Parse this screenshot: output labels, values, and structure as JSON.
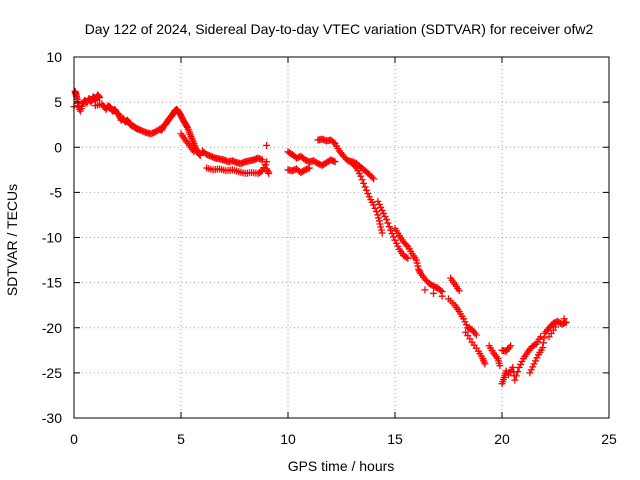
{
  "chart_data": {
    "type": "scatter",
    "title": "Day 122 of 2024, Sidereal Day-to-day VTEC variation (SDTVAR) for receiver ofw2",
    "xlabel": "GPS time / hours",
    "ylabel": "SDTVAR / TECUs",
    "xlim": [
      0,
      25
    ],
    "ylim": [
      -30,
      10
    ],
    "xticks": [
      0,
      5,
      10,
      15,
      20,
      25
    ],
    "yticks": [
      -30,
      -25,
      -20,
      -15,
      -10,
      -5,
      0,
      5,
      10
    ],
    "xtick_labels": [
      "0",
      "5",
      "10",
      "15",
      "20",
      "25"
    ],
    "ytick_labels": [
      "-30",
      "-25",
      "-20",
      "-15",
      "-10",
      "-5",
      "0",
      "5",
      "10"
    ],
    "grid": true,
    "marker": "+",
    "color": "#ff0000",
    "series": [
      {
        "name": "SDTVAR",
        "points": [
          [
            0.0,
            4.5
          ],
          [
            0.05,
            6.2
          ],
          [
            0.1,
            5.8
          ],
          [
            0.15,
            5.3
          ],
          [
            0.2,
            4.6
          ],
          [
            0.3,
            4.0
          ],
          [
            0.4,
            4.8
          ],
          [
            0.5,
            5.2
          ],
          [
            0.6,
            4.9
          ],
          [
            0.7,
            5.4
          ],
          [
            0.8,
            5.0
          ],
          [
            0.9,
            5.6
          ],
          [
            1.0,
            5.2
          ],
          [
            1.1,
            5.8
          ],
          [
            1.2,
            5.5
          ],
          [
            1.0,
            4.6
          ],
          [
            1.3,
            4.8
          ],
          [
            1.5,
            4.2
          ],
          [
            1.6,
            4.6
          ],
          [
            1.7,
            4.4
          ],
          [
            1.8,
            4.0
          ],
          [
            1.9,
            4.2
          ],
          [
            2.0,
            3.8
          ],
          [
            2.1,
            3.6
          ],
          [
            2.2,
            3.0
          ],
          [
            2.3,
            3.2
          ],
          [
            2.4,
            2.8
          ],
          [
            2.5,
            3.0
          ],
          [
            2.6,
            2.6
          ],
          [
            2.7,
            2.4
          ],
          [
            2.8,
            2.3
          ],
          [
            2.9,
            2.1
          ],
          [
            3.0,
            2.0
          ],
          [
            3.2,
            1.8
          ],
          [
            3.4,
            1.6
          ],
          [
            3.6,
            1.5
          ],
          [
            3.8,
            1.7
          ],
          [
            4.0,
            2.0
          ],
          [
            4.1,
            1.9
          ],
          [
            4.2,
            2.4
          ],
          [
            4.3,
            2.6
          ],
          [
            4.4,
            3.0
          ],
          [
            4.5,
            3.3
          ],
          [
            4.6,
            3.6
          ],
          [
            4.7,
            4.0
          ],
          [
            4.8,
            4.2
          ],
          [
            4.9,
            3.9
          ],
          [
            5.0,
            3.5
          ],
          [
            5.1,
            3.0
          ],
          [
            5.2,
            2.6
          ],
          [
            5.3,
            2.2
          ],
          [
            5.4,
            1.6
          ],
          [
            5.5,
            1.0
          ],
          [
            5.6,
            0.4
          ],
          [
            5.7,
            -0.2
          ],
          [
            5.8,
            -0.6
          ],
          [
            5.9,
            -0.9
          ],
          [
            5.0,
            1.5
          ],
          [
            5.2,
            0.8
          ],
          [
            5.4,
            0.2
          ],
          [
            5.6,
            -0.5
          ],
          [
            6.0,
            -0.4
          ],
          [
            6.2,
            -0.8
          ],
          [
            6.4,
            -1.0
          ],
          [
            6.6,
            -1.2
          ],
          [
            6.8,
            -1.3
          ],
          [
            7.0,
            -1.4
          ],
          [
            7.2,
            -1.6
          ],
          [
            7.4,
            -1.5
          ],
          [
            7.6,
            -1.7
          ],
          [
            7.8,
            -1.8
          ],
          [
            8.0,
            -1.6
          ],
          [
            8.2,
            -1.5
          ],
          [
            8.4,
            -1.4
          ],
          [
            8.6,
            -1.2
          ],
          [
            8.8,
            -1.4
          ],
          [
            6.2,
            -2.3
          ],
          [
            6.5,
            -2.5
          ],
          [
            6.8,
            -2.4
          ],
          [
            7.1,
            -2.6
          ],
          [
            7.4,
            -2.5
          ],
          [
            7.7,
            -2.7
          ],
          [
            8.0,
            -2.9
          ],
          [
            8.3,
            -2.8
          ],
          [
            8.6,
            -2.9
          ],
          [
            8.8,
            -2.6
          ],
          [
            9.0,
            -1.6
          ],
          [
            9.0,
            -2.4
          ],
          [
            9.1,
            -2.9
          ],
          [
            9.0,
            0.2
          ],
          [
            10.0,
            -2.5
          ],
          [
            10.2,
            -2.6
          ],
          [
            10.4,
            -2.4
          ],
          [
            10.6,
            -2.8
          ],
          [
            10.8,
            -2.5
          ],
          [
            11.0,
            -2.3
          ],
          [
            10.0,
            -0.5
          ],
          [
            10.2,
            -0.8
          ],
          [
            10.4,
            -1.2
          ],
          [
            10.6,
            -1.0
          ],
          [
            10.8,
            -1.4
          ],
          [
            11.0,
            -1.6
          ],
          [
            11.2,
            -1.5
          ],
          [
            11.4,
            -1.8
          ],
          [
            11.6,
            -2.0
          ],
          [
            11.8,
            -1.7
          ],
          [
            12.0,
            -1.4
          ],
          [
            12.2,
            -1.6
          ],
          [
            11.4,
            0.8
          ],
          [
            11.6,
            0.9
          ],
          [
            11.8,
            0.7
          ],
          [
            12.0,
            0.8
          ],
          [
            12.2,
            0.4
          ],
          [
            12.4,
            -0.4
          ],
          [
            12.6,
            -1.0
          ],
          [
            12.8,
            -1.5
          ],
          [
            13.0,
            -1.6
          ],
          [
            13.2,
            -1.8
          ],
          [
            13.4,
            -2.2
          ],
          [
            13.6,
            -2.6
          ],
          [
            13.8,
            -3.0
          ],
          [
            14.0,
            -3.5
          ],
          [
            13.0,
            -1.8
          ],
          [
            13.2,
            -2.3
          ],
          [
            13.4,
            -3.2
          ],
          [
            13.6,
            -4.4
          ],
          [
            13.8,
            -5.5
          ],
          [
            14.0,
            -6.4
          ],
          [
            14.2,
            -7.5
          ],
          [
            14.3,
            -8.5
          ],
          [
            14.4,
            -9.5
          ],
          [
            14.2,
            -6.0
          ],
          [
            14.4,
            -7.0
          ],
          [
            14.6,
            -8.0
          ],
          [
            14.8,
            -9.2
          ],
          [
            15.0,
            -10.3
          ],
          [
            15.2,
            -11.3
          ],
          [
            15.4,
            -12.0
          ],
          [
            15.6,
            -12.3
          ],
          [
            15.0,
            -9.0
          ],
          [
            15.2,
            -9.8
          ],
          [
            15.4,
            -10.5
          ],
          [
            15.6,
            -11.0
          ],
          [
            15.8,
            -11.8
          ],
          [
            16.0,
            -12.5
          ],
          [
            16.1,
            -13.5
          ],
          [
            16.2,
            -14.0
          ],
          [
            16.4,
            -14.6
          ],
          [
            16.6,
            -15.1
          ],
          [
            16.8,
            -15.4
          ],
          [
            17.0,
            -15.6
          ],
          [
            17.2,
            -16.0
          ],
          [
            16.4,
            -15.8
          ],
          [
            16.8,
            -16.2
          ],
          [
            17.2,
            -16.5
          ],
          [
            17.6,
            -14.5
          ],
          [
            17.8,
            -15.2
          ],
          [
            18.0,
            -15.9
          ],
          [
            17.5,
            -16.8
          ],
          [
            17.8,
            -17.5
          ],
          [
            18.0,
            -18.2
          ],
          [
            18.2,
            -19.0
          ],
          [
            18.4,
            -20.0
          ],
          [
            18.6,
            -20.2
          ],
          [
            18.8,
            -20.8
          ],
          [
            18.3,
            -20.5
          ],
          [
            18.6,
            -21.6
          ],
          [
            18.9,
            -22.6
          ],
          [
            19.1,
            -23.4
          ],
          [
            19.2,
            -24.0
          ],
          [
            19.4,
            -22.0
          ],
          [
            19.6,
            -22.8
          ],
          [
            19.8,
            -23.4
          ],
          [
            19.9,
            -24.2
          ],
          [
            20.0,
            -26.2
          ],
          [
            20.1,
            -25.5
          ],
          [
            20.2,
            -24.8
          ],
          [
            20.0,
            -22.5
          ],
          [
            20.2,
            -22.6
          ],
          [
            20.4,
            -22.0
          ],
          [
            20.3,
            -25.2
          ],
          [
            20.5,
            -24.4
          ],
          [
            20.6,
            -25.8
          ],
          [
            20.8,
            -24.4
          ],
          [
            21.0,
            -23.4
          ],
          [
            21.2,
            -22.7
          ],
          [
            21.4,
            -22.1
          ],
          [
            21.6,
            -21.8
          ],
          [
            21.8,
            -21.0
          ],
          [
            21.3,
            -25.0
          ],
          [
            21.5,
            -24.0
          ],
          [
            21.7,
            -23.0
          ],
          [
            21.9,
            -22.2
          ],
          [
            22.0,
            -20.6
          ],
          [
            22.2,
            -20.0
          ],
          [
            22.4,
            -19.5
          ],
          [
            22.6,
            -19.3
          ],
          [
            22.8,
            -19.6
          ],
          [
            23.0,
            -19.4
          ],
          [
            22.2,
            -21.0
          ],
          [
            22.5,
            -19.9
          ],
          [
            22.9,
            -19.0
          ]
        ]
      }
    ]
  }
}
